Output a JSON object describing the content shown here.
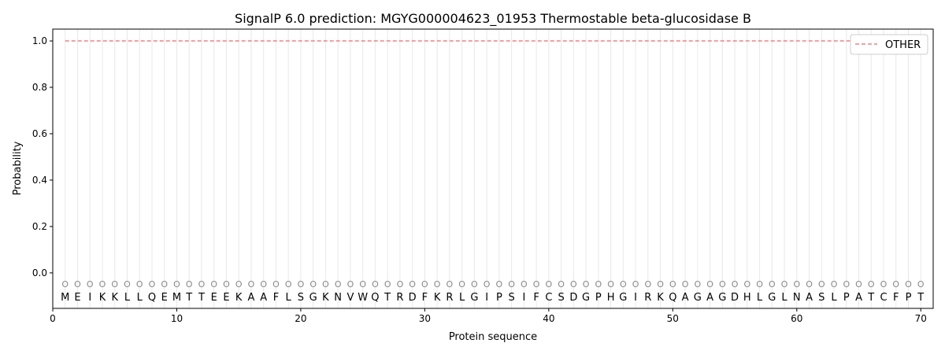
{
  "chart_data": {
    "type": "line",
    "title": "SignalP 6.0 prediction: MGYG000004623_01953 Thermostable beta-glucosidase B",
    "xlabel": "Protein sequence",
    "ylabel": "Probability",
    "xlim": [
      0,
      71
    ],
    "ylim": [
      -0.153,
      1.051
    ],
    "xticks": [
      0,
      10,
      20,
      30,
      40,
      50,
      60,
      70
    ],
    "yticks": [
      0.0,
      0.2,
      0.4,
      0.6,
      0.8,
      1.0
    ],
    "ytick_labels": [
      "0.0",
      "0.2",
      "0.4",
      "0.6",
      "0.8",
      "1.0"
    ],
    "grid": "vertical per residue",
    "legend_placement": "top-right",
    "sequence": "MEIKKLLQEMTTEEKAAFLSGKNVWQTRDFKRLGIPSIFCSDGPHGIRKQAGAGDHLGLNASLPATCFPT",
    "predicted_label_marker": "O",
    "series": [
      {
        "name": "OTHER",
        "color": "#f08080",
        "style": "dashed",
        "x_range": [
          1,
          70
        ],
        "value": 1.0
      }
    ]
  }
}
